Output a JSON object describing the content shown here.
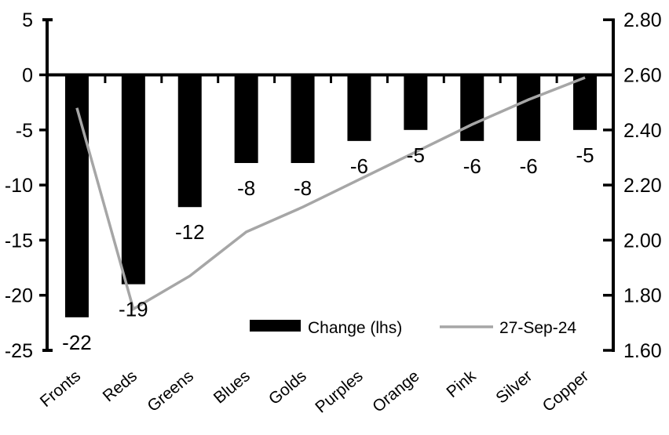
{
  "chart_data": {
    "type": "bar",
    "subtype": "combo-bar-line-dual-axis",
    "title": "",
    "categories": [
      "Fronts",
      "Reds",
      "Greens",
      "Blues",
      "Golds",
      "Purples",
      "Orange",
      "Pink",
      "Silver",
      "Copper"
    ],
    "series": [
      {
        "name": "Change (lhs)",
        "type": "bar",
        "axis": "left",
        "color": "#000000",
        "values": [
          -22,
          -19,
          -12,
          -8,
          -8,
          -6,
          -5,
          -6,
          -6,
          -5
        ],
        "data_labels": [
          "-22",
          "-19",
          "-12",
          "-8",
          "-8",
          "-6",
          "-5",
          "-6",
          "-6",
          "-5"
        ]
      },
      {
        "name": "27-Sep-24",
        "type": "line",
        "axis": "right",
        "color": "#a6a6a6",
        "values": [
          2.48,
          1.75,
          1.87,
          2.03,
          2.12,
          2.22,
          2.32,
          2.42,
          2.51,
          2.59
        ]
      }
    ],
    "left_axis": {
      "min": -25,
      "max": 5,
      "tick_labels": [
        "5",
        "0",
        "-5",
        "-10",
        "-15",
        "-20",
        "-25"
      ]
    },
    "right_axis": {
      "min": 1.6,
      "max": 2.8,
      "tick_labels": [
        "2.80",
        "2.60",
        "2.40",
        "2.20",
        "2.00",
        "1.80",
        "1.60"
      ]
    },
    "legend": {
      "position": "bottom-center",
      "entries": [
        "Change (lhs)",
        "27-Sep-24"
      ]
    },
    "grid": "off",
    "axis_color": "#000000",
    "background": "#ffffff"
  }
}
